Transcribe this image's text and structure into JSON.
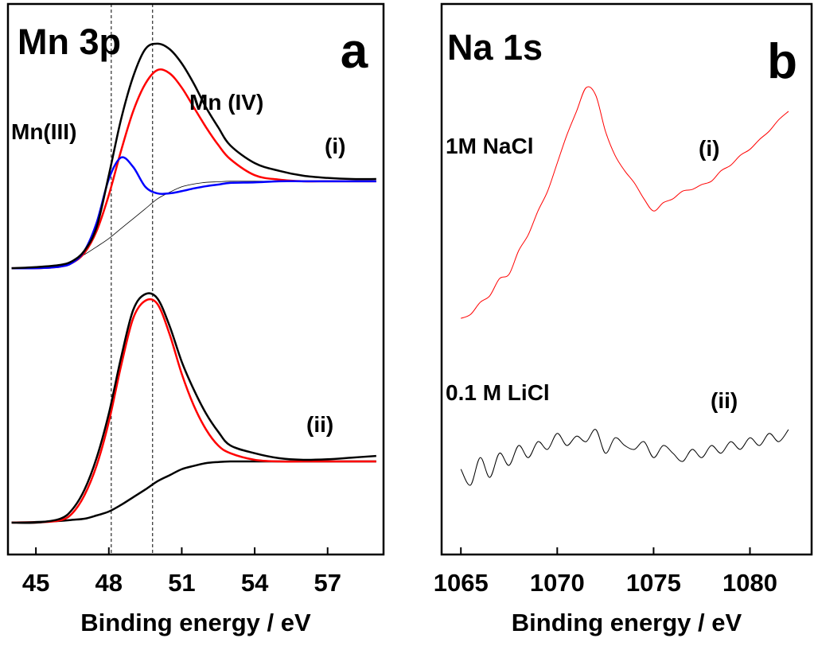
{
  "chart_data": [
    {
      "type": "line",
      "title": "Mn 3p",
      "panel_label": "a",
      "xlabel": "Binding energy / eV",
      "annotations": [
        "Mn (IV)",
        "Mn(III)",
        "(i)",
        "(ii)"
      ],
      "xlim": [
        43.85,
        59.3
      ],
      "xticks": [
        45,
        48,
        51,
        54,
        57
      ],
      "ylim": [
        0,
        100
      ],
      "vlines": [
        48.1,
        49.8
      ],
      "x": [
        44,
        45,
        46,
        46.5,
        47,
        47.5,
        48,
        48.5,
        49,
        49.5,
        50,
        50.5,
        51,
        51.5,
        52,
        52.5,
        53,
        54,
        55,
        56,
        57,
        58,
        59
      ],
      "series": [
        {
          "color": "#000000",
          "line_width": 0.8,
          "values": [
            52.0,
            52.2,
            52.6,
            53.4,
            54.5,
            55.9,
            57.4,
            59.2,
            61.0,
            62.8,
            64.6,
            65.8,
            66.8,
            67.3,
            67.6,
            67.7,
            67.8,
            67.8,
            67.8,
            67.8,
            67.8,
            67.8,
            67.8
          ]
        },
        {
          "color": "#ff0000",
          "line_width": 2.5,
          "values": [
            52.0,
            52.0,
            52.3,
            53.0,
            54.8,
            58.8,
            65.3,
            73.3,
            80.5,
            85.5,
            88.0,
            87.4,
            84.8,
            81.2,
            77.6,
            74.4,
            71.8,
            68.9,
            68.1,
            67.8,
            67.8,
            67.8,
            67.8
          ]
        },
        {
          "color": "#0000ff",
          "line_width": 2.5,
          "values": [
            52.0,
            52.0,
            52.3,
            53.0,
            55.2,
            60.3,
            68.2,
            72.1,
            70.4,
            66.8,
            65.6,
            65.6,
            66.0,
            66.5,
            66.9,
            67.2,
            67.5,
            67.6,
            67.8,
            67.8,
            67.8,
            67.8,
            67.8
          ]
        },
        {
          "color": "#000000",
          "line_width": 2.5,
          "values": [
            52.0,
            52.2,
            52.6,
            53.3,
            55.2,
            59.5,
            68.9,
            79.0,
            86.8,
            91.8,
            92.8,
            91.8,
            89.2,
            85.5,
            81.2,
            77.6,
            74.3,
            71.1,
            69.7,
            68.8,
            68.4,
            68.2,
            68.2
          ]
        },
        {
          "color": "#000000",
          "line_width": 2.5,
          "values": [
            5.8,
            5.9,
            6.1,
            6.3,
            6.5,
            7.1,
            7.8,
            9.0,
            10.4,
            11.8,
            13.3,
            14.4,
            15.5,
            16.1,
            16.6,
            16.8,
            16.9,
            16.9,
            16.9,
            16.9,
            16.9,
            16.9,
            16.9
          ]
        },
        {
          "color": "#ff0000",
          "line_width": 2.5,
          "values": [
            5.8,
            5.8,
            6.2,
            7.5,
            10.8,
            16.2,
            24.1,
            34.2,
            42.9,
            46.1,
            45.5,
            40.0,
            32.8,
            27.0,
            22.7,
            19.8,
            18.4,
            17.2,
            16.9,
            16.9,
            16.9,
            16.9,
            16.9
          ]
        },
        {
          "color": "#000000",
          "line_width": 2.5,
          "values": [
            5.8,
            5.8,
            6.5,
            8.2,
            11.8,
            17.6,
            25.6,
            35.7,
            44.4,
            47.3,
            46.5,
            41.5,
            35.0,
            29.9,
            25.6,
            22.3,
            19.8,
            18.4,
            17.5,
            17.2,
            17.3,
            17.6,
            17.9
          ]
        }
      ]
    },
    {
      "type": "line",
      "title": "Na 1s",
      "panel_label": "b",
      "xlabel": "Binding energy / eV",
      "annotations": [
        "1M NaCl",
        "(i)",
        "0.1 M LiCl",
        "(ii)"
      ],
      "xlim": [
        1064,
        1083.2
      ],
      "xticks": [
        1065,
        1070,
        1075,
        1080
      ],
      "ylim": [
        0,
        100
      ],
      "x": [
        1065,
        1065.5,
        1066,
        1066.5,
        1067,
        1067.5,
        1068,
        1068.5,
        1069,
        1069.5,
        1070,
        1070.5,
        1071,
        1071.5,
        1072,
        1072.5,
        1073,
        1073.5,
        1074,
        1074.5,
        1075,
        1075.5,
        1076,
        1076.5,
        1077,
        1077.5,
        1078,
        1078.5,
        1079,
        1079.5,
        1080,
        1080.5,
        1081,
        1081.5,
        1082
      ],
      "series": [
        {
          "color": "#ff0000",
          "line_width": 1,
          "values": [
            42.9,
            43.6,
            45.8,
            47.0,
            50.1,
            50.9,
            55.2,
            58.1,
            62.4,
            66.0,
            71.1,
            76.2,
            80.5,
            84.8,
            83.4,
            76.9,
            72.5,
            69.7,
            67.5,
            64.6,
            62.4,
            63.9,
            64.6,
            66.0,
            66.3,
            67.2,
            67.8,
            69.7,
            70.7,
            72.5,
            73.6,
            75.4,
            76.9,
            79.0,
            80.5
          ]
        },
        {
          "color": "#000000",
          "line_width": 1,
          "values": [
            15.5,
            12.6,
            17.6,
            14.0,
            18.4,
            16.2,
            19.8,
            17.6,
            20.5,
            19.1,
            22.0,
            19.8,
            21.5,
            20.5,
            22.7,
            18.4,
            21.2,
            19.8,
            19.1,
            20.5,
            17.6,
            19.8,
            18.4,
            16.9,
            19.1,
            17.6,
            19.8,
            18.4,
            20.5,
            19.1,
            21.2,
            19.8,
            22.0,
            20.5,
            22.7
          ]
        }
      ]
    }
  ]
}
